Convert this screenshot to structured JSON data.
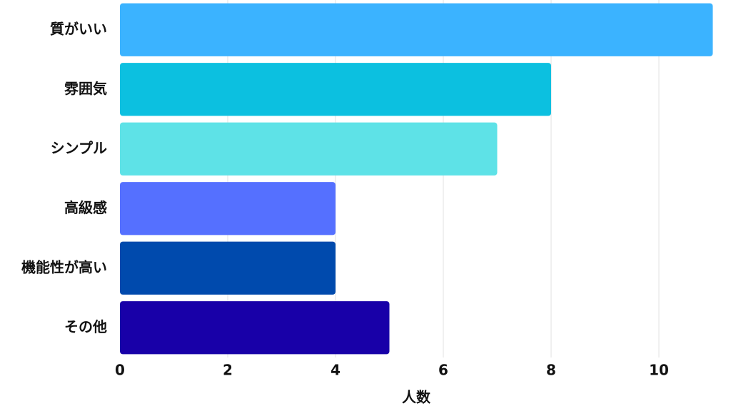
{
  "chart_data": {
    "type": "bar",
    "orientation": "horizontal",
    "categories": [
      "質がいい",
      "雰囲気",
      "シンプル",
      "高級感",
      "機能性が高い",
      "その他"
    ],
    "values": [
      11,
      8,
      7,
      4,
      4,
      5
    ],
    "colors": [
      "#3bb3ff",
      "#0cc0e0",
      "#5ee2e7",
      "#5570ff",
      "#004aad",
      "#1800a8"
    ],
    "xlabel": "人数",
    "xlim": [
      0,
      11
    ],
    "xticks": [
      0,
      2,
      4,
      6,
      8,
      10
    ],
    "grid": true
  }
}
